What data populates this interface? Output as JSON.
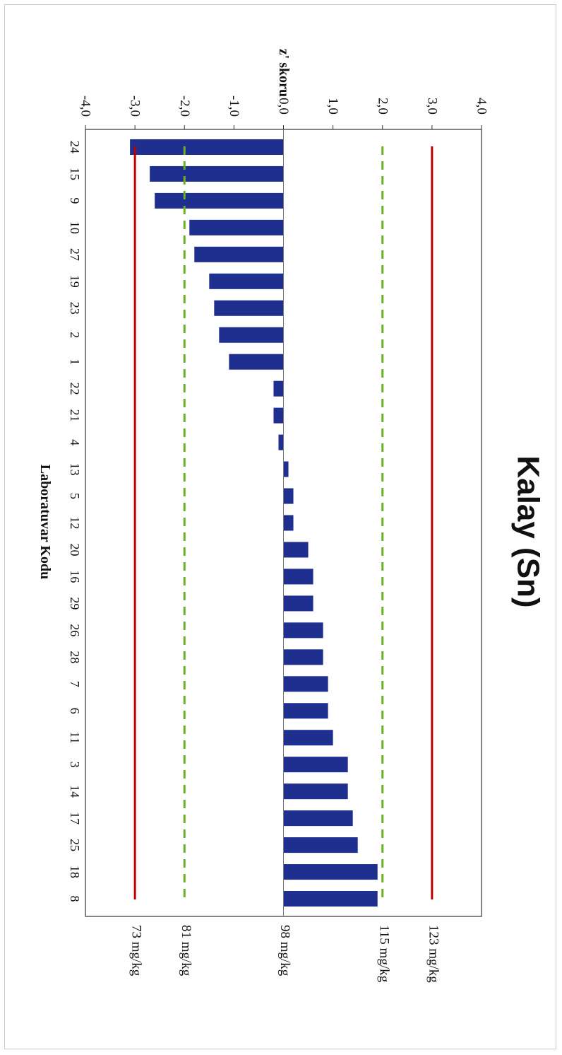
{
  "chart_data": {
    "type": "bar",
    "orientation": "horizontal-bars, page rotated 90 degrees",
    "title": "Kalay (Sn)",
    "ylabel": "z' skoru",
    "xlabel": "Laboratuvar Kodu",
    "ylim": [
      -4.0,
      4.0
    ],
    "y_ticks": [
      "-4,0",
      "-3,0",
      "-2,0",
      "-1,0",
      "0,0",
      "1,0",
      "2,0",
      "3,0",
      "4,0"
    ],
    "categories": [
      "24",
      "15",
      "9",
      "10",
      "27",
      "19",
      "23",
      "2",
      "1",
      "22",
      "21",
      "4",
      "13",
      "5",
      "12",
      "20",
      "16",
      "29",
      "26",
      "28",
      "7",
      "6",
      "11",
      "3",
      "14",
      "17",
      "25",
      "18",
      "8"
    ],
    "values": [
      -3.1,
      -2.7,
      -2.6,
      -1.9,
      -1.8,
      -1.5,
      -1.4,
      -1.3,
      -1.1,
      -0.2,
      -0.2,
      -0.1,
      0.1,
      0.2,
      0.2,
      0.5,
      0.6,
      0.6,
      0.8,
      0.8,
      0.9,
      0.9,
      1.0,
      1.3,
      1.3,
      1.4,
      1.5,
      1.9,
      1.9
    ],
    "reference_lines": [
      {
        "value": -3.0,
        "style": "solid",
        "color": "#c00000",
        "label": "73 mg/kg"
      },
      {
        "value": -2.0,
        "style": "dashed",
        "color": "#6ab023",
        "label": "81 mg/kg"
      },
      {
        "value": 0.0,
        "style": "none",
        "color": "#000000",
        "label": "98 mg/kg"
      },
      {
        "value": 2.0,
        "style": "dashed",
        "color": "#6ab023",
        "label": "115 mg/kg"
      },
      {
        "value": 3.0,
        "style": "solid",
        "color": "#c00000",
        "label": "123 mg/kg"
      }
    ],
    "bar_color": "#1f2f8f",
    "grid": false,
    "legend": "none"
  }
}
